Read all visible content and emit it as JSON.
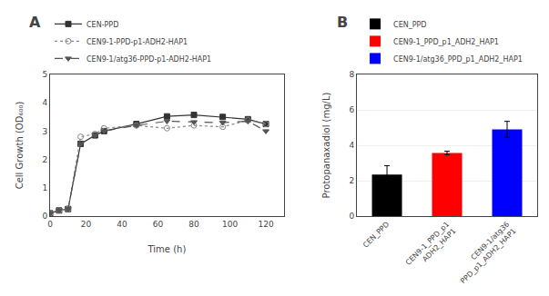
{
  "chart_data": [
    {
      "type": "line",
      "title": "A",
      "xlabel": "Time (h)",
      "ylabel": "Cell Growth (OD₆₀₀)",
      "x": [
        0,
        5,
        10,
        17,
        25,
        30,
        48,
        65,
        80,
        96,
        110,
        120
      ],
      "xlim": [
        0,
        130
      ],
      "xticks": [
        0,
        20,
        40,
        60,
        80,
        100,
        120
      ],
      "ylim": [
        0,
        5
      ],
      "yticks": [
        0,
        1,
        2,
        3,
        4,
        5
      ],
      "grid": false,
      "series": [
        {
          "name": "CEN-PPD",
          "color": "#333333",
          "marker": "square",
          "line_style": "solid",
          "values": [
            0.1,
            0.2,
            0.25,
            2.55,
            2.85,
            3.0,
            3.25,
            3.52,
            3.57,
            3.5,
            3.42,
            3.25
          ]
        },
        {
          "name": "CEN9-1-PPD-p1-ADH2-HAP1",
          "color": "#888888",
          "marker": "circle-open",
          "line_style": "dot",
          "values": [
            0.1,
            0.2,
            0.25,
            2.8,
            2.9,
            3.1,
            3.2,
            3.1,
            3.2,
            3.15,
            3.38,
            3.25
          ]
        },
        {
          "name": "CEN9-1/atg36-PPD-p1-ADH2-HAP1",
          "color": "#555555",
          "marker": "triangle-down",
          "line_style": "dash",
          "values": [
            0.1,
            0.2,
            0.25,
            2.55,
            2.85,
            3.0,
            3.2,
            3.35,
            3.32,
            3.3,
            3.35,
            3.0
          ]
        }
      ]
    },
    {
      "type": "bar",
      "title": "B",
      "ylabel": "Protopanaxadiol (mg/L)",
      "categories": [
        "CEN_PPD",
        "CEN9-1_PPD_p1\nADH2_HAP1",
        "CEN9-1/atg36\nPPD_p1_ADH2_HAP1"
      ],
      "ylim": [
        0,
        8
      ],
      "yticks": [
        0,
        2,
        4,
        6,
        8
      ],
      "grid": true,
      "series": [
        {
          "name": "CEN_PPD",
          "color": "#000000",
          "values": [
            2.35,
            null,
            null
          ],
          "errors": [
            0.5,
            null,
            null
          ]
        },
        {
          "name": "CEN9-1_PPD_p1_ADH2_HAP1",
          "color": "#ff0000",
          "values": [
            null,
            3.57,
            null
          ],
          "errors": [
            null,
            0.1,
            null
          ]
        },
        {
          "name": "CEN9-1/atg36_PPD_p1_ADH2_HAP1",
          "color": "#0000ff",
          "values": [
            null,
            null,
            4.9
          ],
          "errors": [
            null,
            null,
            0.45
          ]
        }
      ]
    }
  ]
}
